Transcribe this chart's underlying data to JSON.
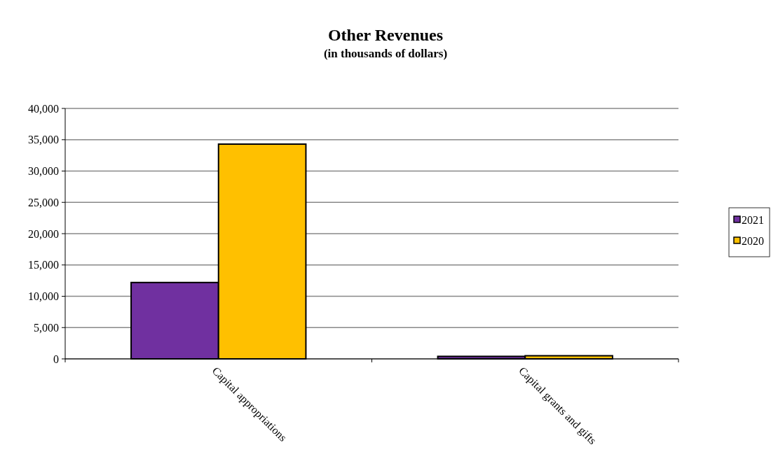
{
  "chart_data": {
    "type": "bar",
    "title": "Other Revenues",
    "subtitle": "(in thousands of dollars)",
    "categories": [
      "Capital appropriations",
      "Capital grants and gifts"
    ],
    "series": [
      {
        "name": "2021",
        "color": "#7030a0",
        "values": [
          12200,
          400
        ]
      },
      {
        "name": "2020",
        "color": "#ffc000",
        "values": [
          34300,
          500
        ]
      }
    ],
    "ylim": [
      0,
      40000
    ],
    "yticks": [
      {
        "value": 0,
        "label": "0"
      },
      {
        "value": 5000,
        "label": "5,000"
      },
      {
        "value": 10000,
        "label": "10,000"
      },
      {
        "value": 15000,
        "label": "15,000"
      },
      {
        "value": 20000,
        "label": "20,000"
      },
      {
        "value": 25000,
        "label": "25,000"
      },
      {
        "value": 30000,
        "label": "30,000"
      },
      {
        "value": 35000,
        "label": "35,000"
      },
      {
        "value": 40000,
        "label": "40,000"
      }
    ],
    "grid": "y",
    "legend": "right"
  }
}
